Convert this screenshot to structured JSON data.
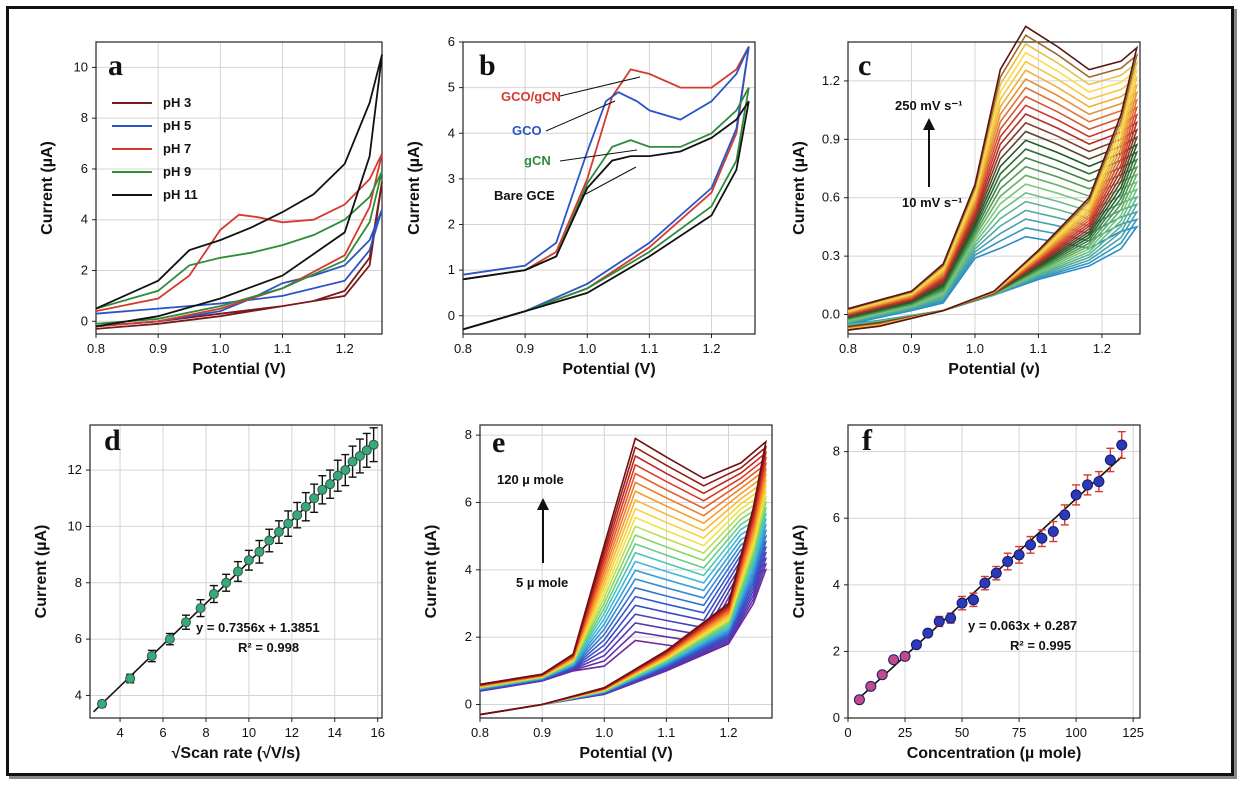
{
  "chart_data": [
    {
      "panel": "a",
      "type": "line",
      "xlabel": "Potential (V)",
      "ylabel": "Current (µA)",
      "xlim": [
        0.8,
        1.26
      ],
      "ylim": [
        -0.5,
        11
      ],
      "xticks": [
        "0.8",
        "0.9",
        "1.0",
        "1.1",
        "1.2"
      ],
      "yticks": [
        "0",
        "2",
        "4",
        "6",
        "8",
        "10"
      ],
      "grid": true,
      "legend_position": "top-left",
      "series": [
        {
          "name": "pH 3",
          "color": "#7a1a1a",
          "x": [
            0.8,
            0.9,
            1.0,
            1.05,
            1.1,
            1.15,
            1.2,
            1.24,
            1.26,
            1.24,
            1.2,
            1.1,
            1.0,
            0.9,
            0.8
          ],
          "y": [
            -0.3,
            -0.1,
            0.2,
            0.4,
            0.6,
            0.8,
            1.2,
            2.5,
            5.5,
            2.2,
            1.0,
            0.6,
            0.3,
            0.0,
            -0.2
          ]
        },
        {
          "name": "pH 5",
          "color": "#2a55c8",
          "x": [
            0.8,
            0.9,
            1.0,
            1.05,
            1.1,
            1.15,
            1.2,
            1.24,
            1.26,
            1.24,
            1.2,
            1.1,
            1.0,
            0.9,
            0.8
          ],
          "y": [
            -0.2,
            0.0,
            0.4,
            0.9,
            1.5,
            1.8,
            2.2,
            3.2,
            4.4,
            2.8,
            1.6,
            1.0,
            0.7,
            0.5,
            0.3
          ]
        },
        {
          "name": "pH 7",
          "color": "#d63a2f",
          "x": [
            0.8,
            0.9,
            0.95,
            1.0,
            1.03,
            1.06,
            1.1,
            1.15,
            1.2,
            1.24,
            1.26,
            1.24,
            1.2,
            1.1,
            1.0,
            0.9,
            0.8
          ],
          "y": [
            0.4,
            0.9,
            1.8,
            3.6,
            4.2,
            4.1,
            3.9,
            4.0,
            4.6,
            5.6,
            6.6,
            4.5,
            2.6,
            1.3,
            0.5,
            0.0,
            -0.2
          ]
        },
        {
          "name": "pH 9",
          "color": "#2e8b3a",
          "x": [
            0.8,
            0.9,
            0.95,
            1.0,
            1.05,
            1.1,
            1.15,
            1.2,
            1.24,
            1.26,
            1.24,
            1.2,
            1.1,
            1.0,
            0.9,
            0.8
          ],
          "y": [
            0.5,
            1.2,
            2.2,
            2.5,
            2.7,
            3.0,
            3.4,
            4.0,
            4.9,
            5.9,
            3.9,
            2.4,
            1.3,
            0.6,
            0.1,
            -0.1
          ]
        },
        {
          "name": "pH 11",
          "color": "#111111",
          "x": [
            0.8,
            0.9,
            0.95,
            1.0,
            1.05,
            1.1,
            1.15,
            1.2,
            1.24,
            1.26,
            1.24,
            1.2,
            1.1,
            1.0,
            0.9,
            0.8
          ],
          "y": [
            0.5,
            1.6,
            2.8,
            3.2,
            3.7,
            4.3,
            5.0,
            6.2,
            8.6,
            10.5,
            6.5,
            3.5,
            1.8,
            0.9,
            0.2,
            -0.2
          ]
        }
      ]
    },
    {
      "panel": "b",
      "type": "line",
      "xlabel": "Potential (V)",
      "ylabel": "Current (µA)",
      "xlim": [
        0.8,
        1.27
      ],
      "ylim": [
        -0.4,
        6
      ],
      "xticks": [
        "0.8",
        "0.9",
        "1.0",
        "1.1",
        "1.2"
      ],
      "yticks": [
        "0",
        "1",
        "2",
        "3",
        "4",
        "5",
        "6"
      ],
      "grid": true,
      "series": [
        {
          "name": "GCO/gCN",
          "color": "#d63a2f",
          "x": [
            0.8,
            0.9,
            0.95,
            1.0,
            1.04,
            1.07,
            1.1,
            1.15,
            1.2,
            1.24,
            1.26,
            1.24,
            1.2,
            1.1,
            1.0,
            0.9,
            0.8
          ],
          "y": [
            0.8,
            1.0,
            1.4,
            3.0,
            4.8,
            5.4,
            5.3,
            5.0,
            5.0,
            5.4,
            5.9,
            4.0,
            2.7,
            1.5,
            0.6,
            0.1,
            -0.3
          ]
        },
        {
          "name": "GCO",
          "color": "#2a55c8",
          "x": [
            0.8,
            0.9,
            0.95,
            1.0,
            1.03,
            1.05,
            1.08,
            1.1,
            1.15,
            1.2,
            1.24,
            1.26,
            1.24,
            1.2,
            1.1,
            1.0,
            0.9,
            0.8
          ],
          "y": [
            0.9,
            1.1,
            1.6,
            3.6,
            4.7,
            4.9,
            4.7,
            4.5,
            4.3,
            4.7,
            5.3,
            5.9,
            4.1,
            2.8,
            1.6,
            0.7,
            0.1,
            -0.3
          ]
        },
        {
          "name": "gCN",
          "color": "#2e8b3a",
          "x": [
            0.8,
            0.9,
            0.95,
            1.0,
            1.04,
            1.07,
            1.1,
            1.15,
            1.2,
            1.24,
            1.26,
            1.24,
            1.2,
            1.1,
            1.0,
            0.9,
            0.8
          ],
          "y": [
            0.8,
            1.0,
            1.3,
            2.9,
            3.7,
            3.85,
            3.7,
            3.7,
            4.0,
            4.5,
            5.0,
            3.4,
            2.4,
            1.4,
            0.6,
            0.1,
            -0.3
          ]
        },
        {
          "name": "Bare GCE",
          "color": "#111111",
          "x": [
            0.8,
            0.9,
            0.95,
            1.0,
            1.04,
            1.07,
            1.1,
            1.15,
            1.2,
            1.24,
            1.26,
            1.24,
            1.2,
            1.1,
            1.0,
            0.9,
            0.8
          ],
          "y": [
            0.8,
            1.0,
            1.3,
            2.8,
            3.4,
            3.5,
            3.5,
            3.6,
            3.9,
            4.3,
            4.7,
            3.2,
            2.2,
            1.3,
            0.5,
            0.1,
            -0.3
          ]
        }
      ],
      "annotations": [
        "GCO/gCN",
        "GCO",
        "gCN",
        "Bare GCE"
      ]
    },
    {
      "panel": "c",
      "type": "line",
      "xlabel": "Potential (v)",
      "ylabel": "Current (µA)",
      "xlim": [
        0.8,
        1.26
      ],
      "ylim": [
        -0.1,
        1.4
      ],
      "xticks": [
        "0.8",
        "0.9",
        "1.0",
        "1.1",
        "1.2"
      ],
      "yticks": [
        "0.0",
        "0.3",
        "0.6",
        "0.9",
        "1.2"
      ],
      "grid": true,
      "family": {
        "count": 25,
        "peak_min": 0.4,
        "peak_max": 1.48,
        "peak_potential": 1.08,
        "end_min": 0.45,
        "end_max": 1.37
      },
      "annotations": [
        "250 mV s⁻¹",
        "10 mV s⁻¹"
      ]
    },
    {
      "panel": "d",
      "type": "scatter",
      "xlabel": "√Scan rate (√V/s)",
      "ylabel": "Current (µA)",
      "xlim": [
        2.6,
        16.2
      ],
      "ylim": [
        3.2,
        13.6
      ],
      "xticks": [
        "4",
        "6",
        "8",
        "10",
        "12",
        "14",
        "16"
      ],
      "yticks": [
        "4",
        "6",
        "8",
        "10",
        "12"
      ],
      "grid": true,
      "x": [
        3.16,
        4.47,
        5.48,
        6.32,
        7.07,
        7.75,
        8.37,
        8.94,
        9.49,
        10.0,
        10.49,
        10.95,
        11.4,
        11.83,
        12.25,
        12.65,
        13.04,
        13.42,
        13.78,
        14.14,
        14.49,
        14.83,
        15.17,
        15.49,
        15.81
      ],
      "y": [
        3.7,
        4.6,
        5.4,
        6.0,
        6.6,
        7.1,
        7.6,
        8.0,
        8.4,
        8.8,
        9.1,
        9.5,
        9.8,
        10.1,
        10.4,
        10.7,
        11.0,
        11.3,
        11.5,
        11.8,
        12.0,
        12.3,
        12.5,
        12.7,
        12.9
      ],
      "error": [
        0.1,
        0.15,
        0.2,
        0.2,
        0.25,
        0.3,
        0.3,
        0.3,
        0.35,
        0.35,
        0.4,
        0.4,
        0.4,
        0.45,
        0.45,
        0.5,
        0.5,
        0.5,
        0.5,
        0.55,
        0.55,
        0.55,
        0.6,
        0.6,
        0.6
      ],
      "fit": {
        "slope": 0.7356,
        "intercept": 1.3851
      },
      "equation": "y = 0.7356x + 1.3851",
      "r2": "R² = 0.998"
    },
    {
      "panel": "e",
      "type": "line",
      "xlabel": "Potential (V)",
      "ylabel": "Current (µA)",
      "xlim": [
        0.8,
        1.27
      ],
      "ylim": [
        -0.4,
        8.3
      ],
      "xticks": [
        "0.8",
        "0.9",
        "1.0",
        "1.1",
        "1.2"
      ],
      "yticks": [
        "0",
        "2",
        "4",
        "6",
        "8"
      ],
      "grid": true,
      "family": {
        "count": 24,
        "peak_min": 1.9,
        "peak_max": 7.9,
        "peak_potential": 1.05,
        "end_min": 4.0,
        "end_max": 7.8
      },
      "annotations": [
        "120 µ mole",
        "5 µ mole"
      ]
    },
    {
      "panel": "f",
      "type": "scatter",
      "xlabel": "Concentration (µ mole)",
      "ylabel": "Current (µA)",
      "xlim": [
        0,
        128
      ],
      "ylim": [
        0,
        8.8
      ],
      "xticks": [
        "0",
        "25",
        "50",
        "75",
        "100",
        "125"
      ],
      "yticks": [
        "0",
        "2",
        "4",
        "6",
        "8"
      ],
      "grid": true,
      "x": [
        5,
        10,
        15,
        20,
        25,
        30,
        35,
        40,
        45,
        50,
        55,
        60,
        65,
        70,
        75,
        80,
        85,
        90,
        95,
        100,
        105,
        110,
        115,
        120
      ],
      "y": [
        0.55,
        0.95,
        1.3,
        1.75,
        1.85,
        2.2,
        2.55,
        2.9,
        3.0,
        3.45,
        3.55,
        4.05,
        4.35,
        4.7,
        4.9,
        5.2,
        5.4,
        5.6,
        6.1,
        6.7,
        7.0,
        7.1,
        7.75,
        8.2
      ],
      "error": [
        0.05,
        0.05,
        0.08,
        0.1,
        0.1,
        0.1,
        0.1,
        0.15,
        0.15,
        0.2,
        0.2,
        0.2,
        0.2,
        0.25,
        0.25,
        0.25,
        0.25,
        0.3,
        0.3,
        0.3,
        0.3,
        0.3,
        0.35,
        0.4
      ],
      "fit": {
        "slope": 0.063,
        "intercept": 0.287
      },
      "equation": "y = 0.063x + 0.287",
      "r2": "R² = 0.995"
    }
  ]
}
